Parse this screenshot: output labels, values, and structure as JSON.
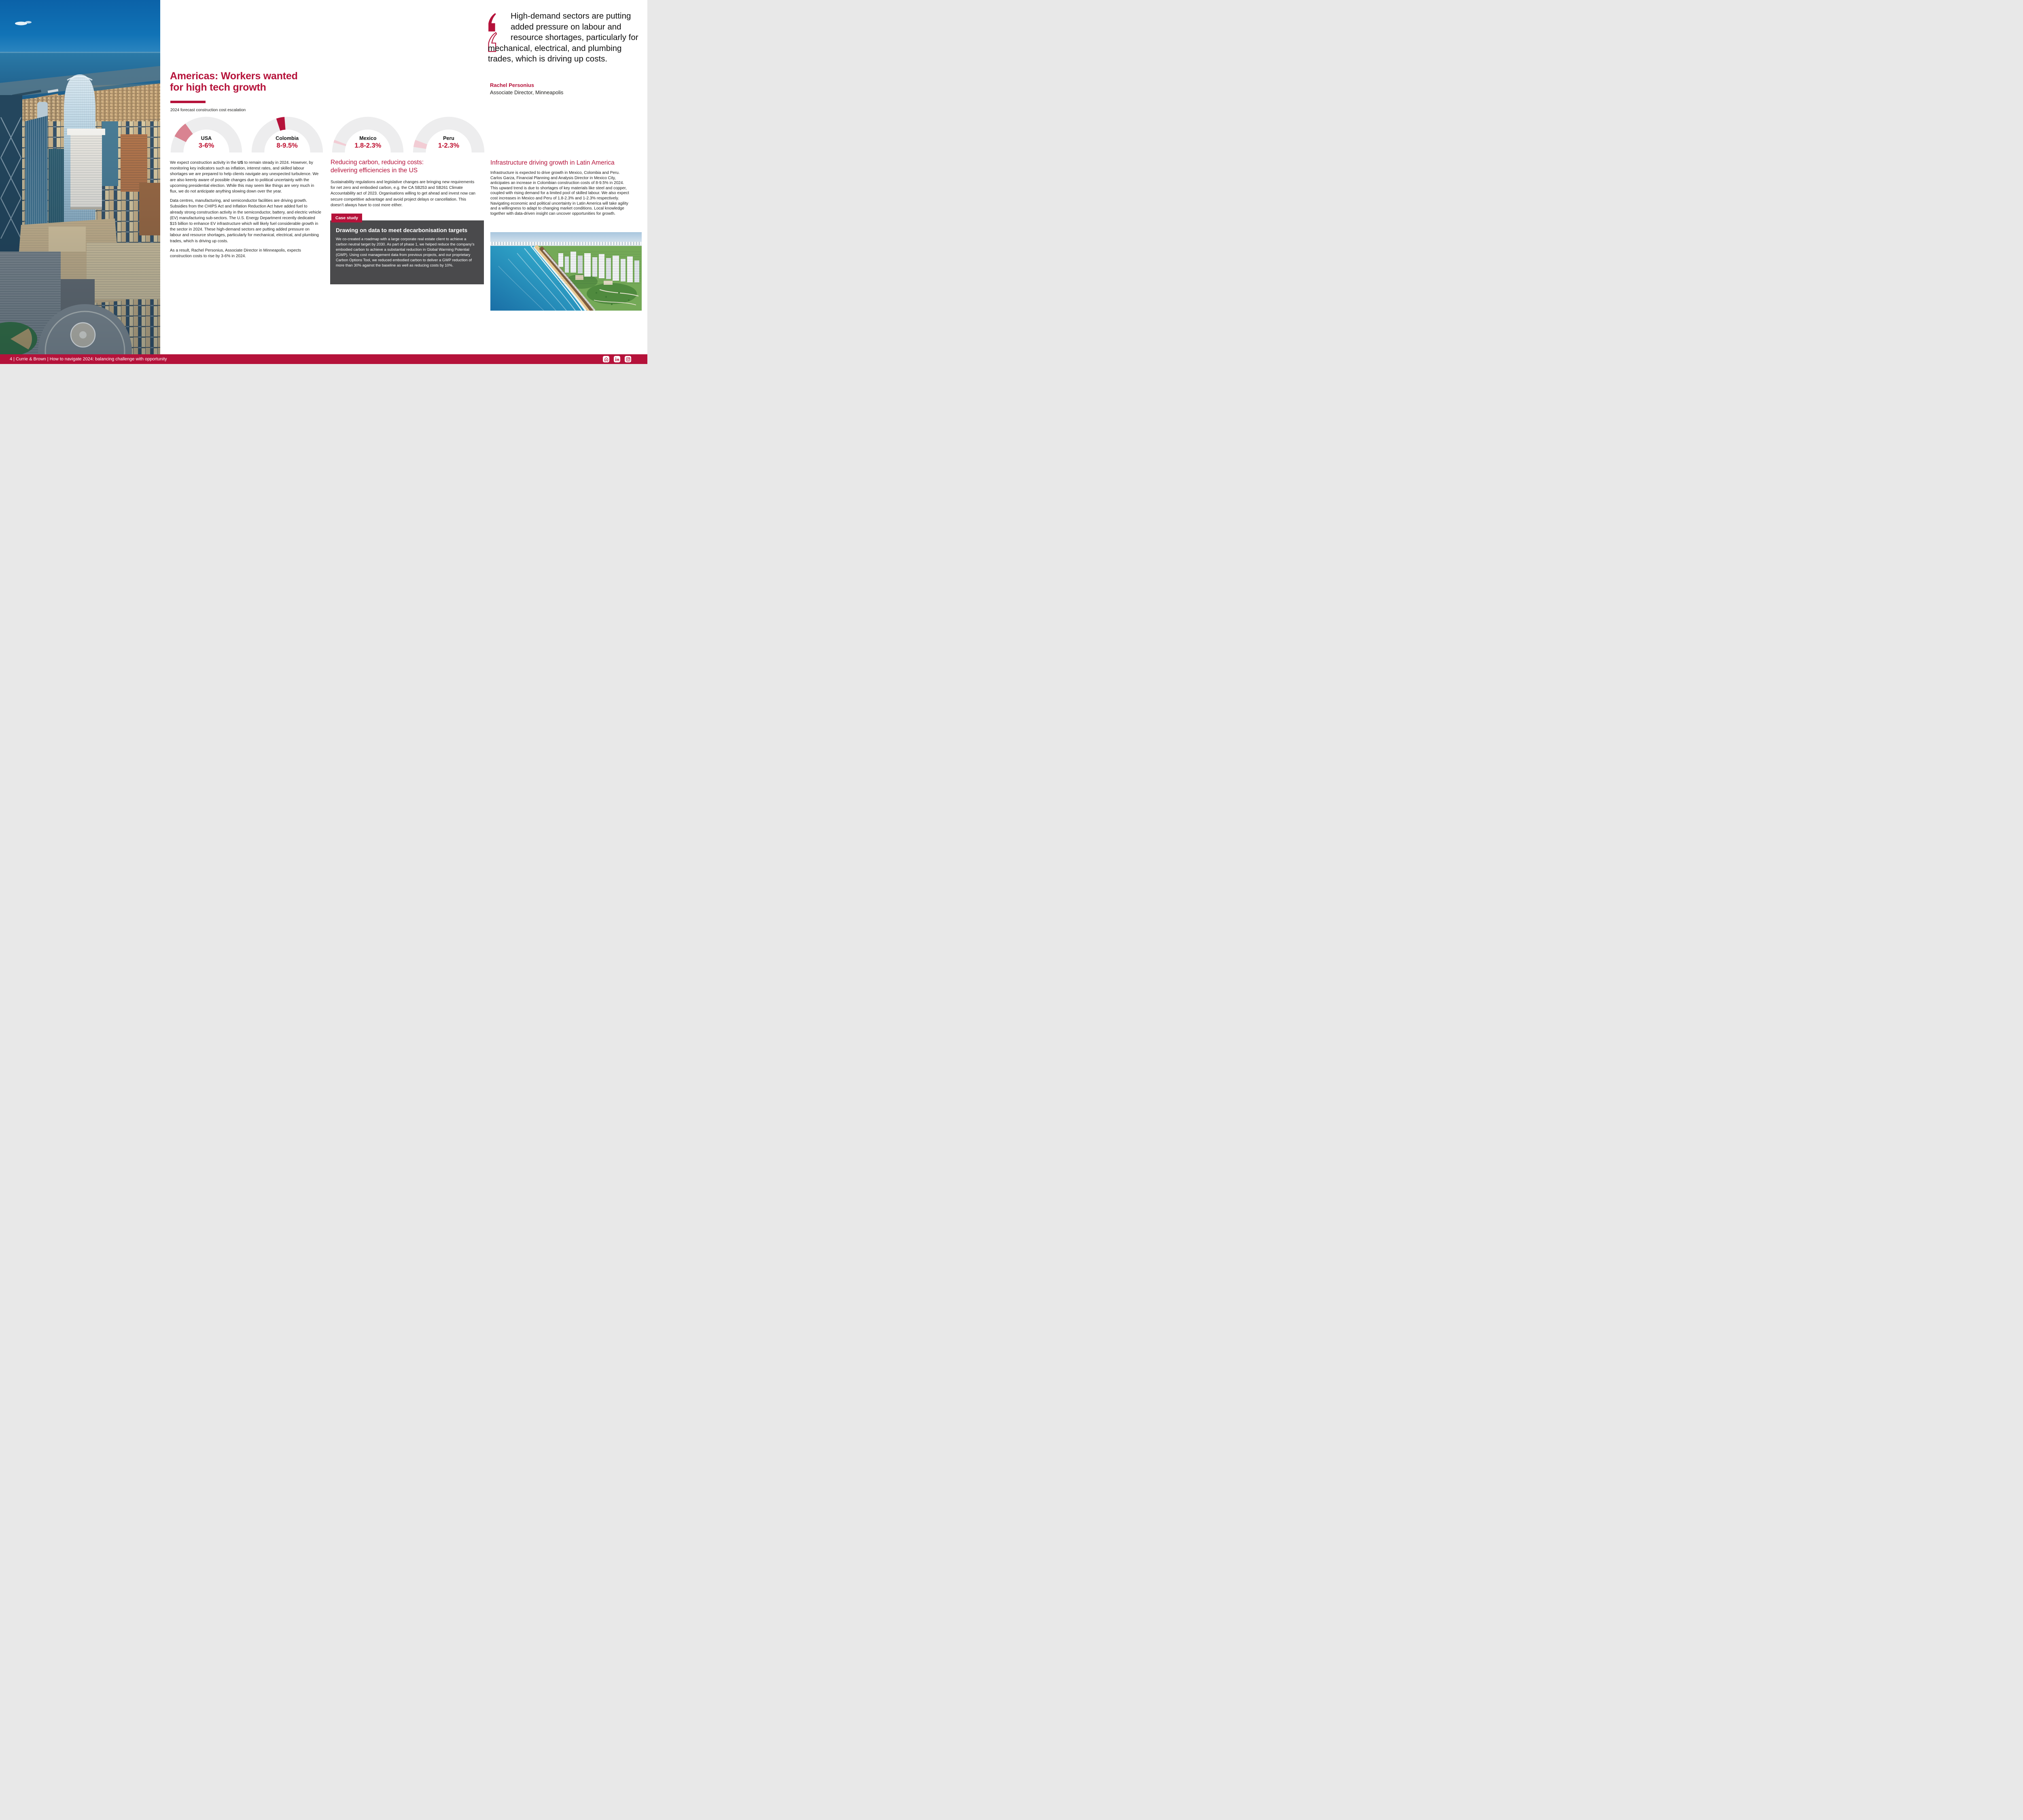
{
  "colors": {
    "accent": "#b5123a",
    "value_red": "#bd0e2e",
    "case_study_background": "#4a4a4c",
    "gauge_track": "#ededee"
  },
  "header_quote": {
    "icon": "double-quote-icon",
    "text": "High-demand sectors are putting added pressure on labour and resource shortages, particularly for mechanical, electrical, and plumbing trades, which is driving up costs.",
    "author": "Rachel Personius",
    "role": "Associate Director, Minneapolis"
  },
  "article": {
    "title_line1": "Americas: Workers wanted",
    "title_line2": "for high tech growth",
    "kicker": "2024 forecast construction cost escalation",
    "paragraph1_pre": "We expect construction activity in the ",
    "paragraph1_bold": "US",
    "paragraph1_post": " to remain steady in 2024. However, by monitoring key indicators such as inflation, interest rates, and skilled labour shortages we are prepared to help clients navigate any unexpected turbulence. We are also keenly aware of possible changes due to political uncertainty with the upcoming presidential election. While this may seem like things are very much in flux, we do not anticipate anything slowing down over the year.",
    "paragraph2": "Data centres, manufacturing, and semiconductor facilities are driving growth. Subsidies from the CHIPS Act and Inflation Reduction Act have added fuel to already strong construction activity in the semiconductor, battery, and electric vehicle (EV) manufacturing sub-sectors. The U.S. Energy Department recently dedicated $15 billion to enhance EV infrastructure which will likely fuel considerable growth in the sector in 2024. These high-demand sectors are putting added pressure on labour and resource shortages, particularly for mechanical, electrical, and plumbing trades, which is driving up costs.",
    "paragraph3": "As a result, Rachel Personius, Associate Director in Minneapolis, expects construction costs to rise by 3-6% in 2024."
  },
  "chart_data": {
    "type": "gauge",
    "title": "2024 forecast construction cost escalation",
    "scale": [
      0,
      20
    ],
    "unit": "percent",
    "track_color": "#ededee",
    "gauges": [
      {
        "country": "USA",
        "range_label": "3-6%",
        "min": 3,
        "max": 6,
        "segment_color": "#d98391"
      },
      {
        "country": "Colombia",
        "range_label": "8-9.5%",
        "min": 8,
        "max": 9.5,
        "segment_color": "#b5123a"
      },
      {
        "country": "Mexico",
        "range_label": "1.8-2.3%",
        "min": 1.8,
        "max": 2.3,
        "segment_color": "#f2ccd4"
      },
      {
        "country": "Peru",
        "range_label": "1-2.3%",
        "min": 1,
        "max": 2.3,
        "segment_color": "#f2ccd4"
      }
    ]
  },
  "carbon_section": {
    "heading_line1": "Reducing carbon, reducing costs:",
    "heading_line2": "delivering efficiencies in the US",
    "body": "Sustainability regulations and legislative changes are bringing new requirements for net zero and embodied carbon, e.g. the CA SB253 and SB261 Climate Accountability act of 2023. Organisations willing to get ahead and invest now can secure competitive advantage and avoid project delays or cancellation. This doesn’t always have to cost more either.",
    "case_study": {
      "badge": "Case study",
      "heading": "Drawing on data to meet decarbonisation targets",
      "body": "We co-created a roadmap with a large corporate real estate client to achieve a carbon neutral target by 2030. As part of phase 1, we helped reduce the company’s embodied carbon to achieve a substantial reduction in Global Warming Potential (GWP). Using cost management data from previous projects, and our proprietary Carbon Options Tool, we reduced embodied carbon to deliver a GWP reduction of more than 30% against the baseline as well as reducing costs by 10%."
    }
  },
  "latam_section": {
    "heading": "Infrastructure driving growth in Latin America",
    "body": "Infrastructure is expected to drive growth in Mexico, Colombia and Peru. Carlos Garza, Financial Planning and Analysis Director in Mexico City, anticipates an increase in Colombian construction costs of 8-9.5% in 2024. This upward trend is due to shortages of key materials like steel and copper, coupled with rising demand for a limited pool of skilled labour. We also expect cost increases in Mexico and Peru of 1.8-2.3% and 1-2.3% respectively. Navigating economic and political uncertainty in Latin America will take agility and a willingness to adapt to changing market conditions. Local knowledge together with data-driven insight can uncover opportunities for growth."
  },
  "footer": {
    "text": "4 | Currie & Brown | How to navigate 2024: balancing challenge with opportunity",
    "social": [
      "home",
      "linkedin",
      "instagram"
    ]
  },
  "images": {
    "left_photo": "aerial-san-francisco-salesforce-tower",
    "latam_photo": "aerial-lima-miraflores-coastline"
  }
}
